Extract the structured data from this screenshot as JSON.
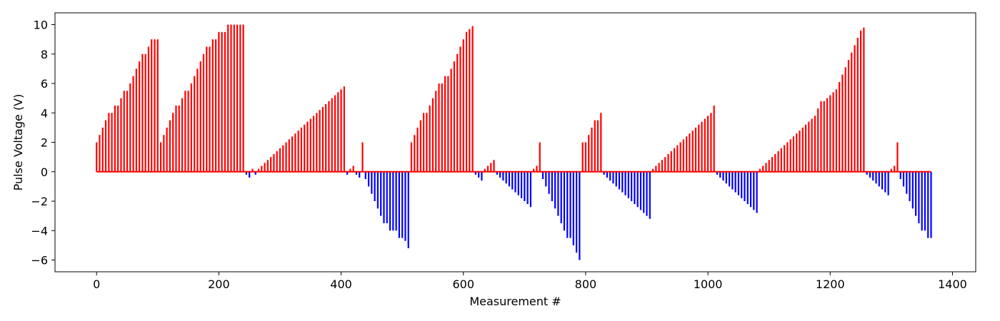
{
  "chart_data": {
    "type": "bar",
    "title": "",
    "xlabel": "Measurement #",
    "ylabel": "Pulse Voltage (V)",
    "xlim": [
      -68,
      1438
    ],
    "ylim": [
      -6.8,
      10.8
    ],
    "xticks": [
      0,
      200,
      400,
      600,
      800,
      1000,
      1200,
      1400
    ],
    "yticks": [
      -6,
      -4,
      -2,
      0,
      2,
      4,
      6,
      8,
      10
    ],
    "x_step": 5,
    "x_start": 0,
    "colors": {
      "positive": "#ff0000",
      "negative": "#0000ff"
    },
    "grid": false,
    "legend": "none",
    "values": [
      2.0,
      2.5,
      3.0,
      3.5,
      4.0,
      4.0,
      4.5,
      4.5,
      5.0,
      5.5,
      5.5,
      6.0,
      6.5,
      7.0,
      7.5,
      8.0,
      8.0,
      8.5,
      9.0,
      9.0,
      9.0,
      2.0,
      2.5,
      3.0,
      3.5,
      4.0,
      4.5,
      4.5,
      5.0,
      5.5,
      5.5,
      6.0,
      6.5,
      7.0,
      7.5,
      8.0,
      8.5,
      8.5,
      9.0,
      9.0,
      9.5,
      9.5,
      9.5,
      10.0,
      10.0,
      10.0,
      10.0,
      10.0,
      10.0,
      -0.2,
      -0.4,
      0.2,
      -0.2,
      0.2,
      0.4,
      0.6,
      0.8,
      1.0,
      1.2,
      1.4,
      1.6,
      1.8,
      2.0,
      2.2,
      2.4,
      2.6,
      2.8,
      3.0,
      3.2,
      3.4,
      3.6,
      3.8,
      4.0,
      4.2,
      4.4,
      4.6,
      4.8,
      5.0,
      5.2,
      5.4,
      5.6,
      5.8,
      -0.2,
      0.2,
      0.4,
      -0.2,
      -0.4,
      2.0,
      -0.5,
      -1.0,
      -1.5,
      -2.0,
      -2.5,
      -3.0,
      -3.5,
      -3.5,
      -4.0,
      -4.0,
      -4.0,
      -4.5,
      -4.5,
      -4.7,
      -5.2,
      2.0,
      2.5,
      3.0,
      3.5,
      4.0,
      4.0,
      4.5,
      5.0,
      5.5,
      6.0,
      6.0,
      6.5,
      6.5,
      7.0,
      7.5,
      8.0,
      8.5,
      9.0,
      9.5,
      9.7,
      9.9,
      -0.2,
      -0.4,
      -0.6,
      0.2,
      0.4,
      0.6,
      0.8,
      -0.2,
      -0.4,
      -0.6,
      -0.8,
      -1.0,
      -1.2,
      -1.4,
      -1.6,
      -1.8,
      -2.0,
      -2.2,
      -2.4,
      0.2,
      0.4,
      2.0,
      -0.5,
      -1.0,
      -1.5,
      -2.0,
      -2.5,
      -3.0,
      -3.5,
      -4.0,
      -4.5,
      -4.5,
      -5.0,
      -5.5,
      -6.0,
      2.0,
      2.0,
      2.5,
      3.0,
      3.5,
      3.5,
      4.0,
      -0.2,
      -0.4,
      -0.6,
      -0.8,
      -1.0,
      -1.2,
      -1.4,
      -1.6,
      -1.8,
      -2.0,
      -2.2,
      -2.4,
      -2.6,
      -2.8,
      -3.0,
      -3.2,
      0.2,
      0.4,
      0.6,
      0.8,
      1.0,
      1.2,
      1.4,
      1.6,
      1.8,
      2.0,
      2.2,
      2.4,
      2.6,
      2.8,
      3.0,
      3.2,
      3.4,
      3.6,
      3.8,
      4.0,
      4.5,
      -0.2,
      -0.4,
      -0.6,
      -0.8,
      -1.0,
      -1.2,
      -1.4,
      -1.6,
      -1.8,
      -2.0,
      -2.2,
      -2.4,
      -2.6,
      -2.8,
      0.2,
      0.4,
      0.6,
      0.8,
      1.0,
      1.2,
      1.4,
      1.6,
      1.8,
      2.0,
      2.2,
      2.4,
      2.6,
      2.8,
      3.0,
      3.2,
      3.4,
      3.6,
      3.8,
      4.3,
      4.8,
      4.8,
      5.0,
      5.2,
      5.4,
      5.6,
      6.1,
      6.6,
      7.1,
      7.6,
      8.1,
      8.6,
      9.1,
      9.6,
      9.8,
      -0.2,
      -0.4,
      -0.6,
      -0.8,
      -1.0,
      -1.2,
      -1.4,
      -1.6,
      0.2,
      0.4,
      2.0,
      -0.5,
      -1.0,
      -1.5,
      -2.0,
      -2.5,
      -3.0,
      -3.5,
      -4.0,
      -4.0,
      -4.5,
      -4.5
    ]
  }
}
